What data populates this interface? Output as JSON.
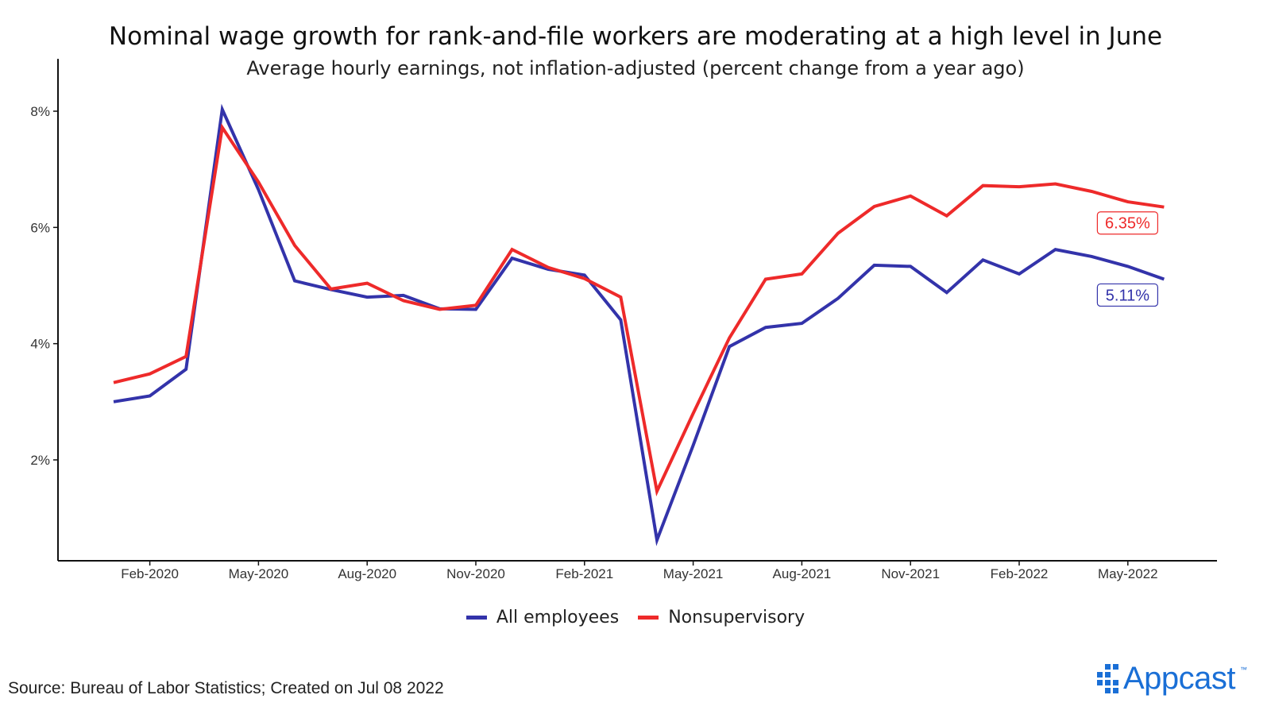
{
  "title": "Nominal wage growth for rank-and-file workers are moderating at a high level in June",
  "subtitle": "Average hourly earnings, not inflation-adjusted (percent change from a year ago)",
  "source": "Source: Bureau of Labor Statistics; Created on Jul 08 2022",
  "logo": {
    "text": "Appcast",
    "trademark": "™"
  },
  "legend": [
    {
      "label": "All employees",
      "color": "#3333aa"
    },
    {
      "label": "Nonsupervisory",
      "color": "#ee2a2a"
    }
  ],
  "chart_data": {
    "type": "line",
    "title": "Nominal wage growth for rank-and-file workers are moderating at a high level in June",
    "subtitle": "Average hourly earnings, not inflation-adjusted (percent change from a year ago)",
    "xlabel": "",
    "ylabel": "",
    "x": [
      "2020-01",
      "2020-02",
      "2020-03",
      "2020-04",
      "2020-05",
      "2020-06",
      "2020-07",
      "2020-08",
      "2020-09",
      "2020-10",
      "2020-11",
      "2020-12",
      "2021-01",
      "2021-02",
      "2021-03",
      "2021-04",
      "2021-05",
      "2021-06",
      "2021-07",
      "2021-08",
      "2021-09",
      "2021-10",
      "2021-11",
      "2021-12",
      "2022-01",
      "2022-02",
      "2022-03",
      "2022-04",
      "2022-05",
      "2022-06"
    ],
    "x_tick_labels": [
      "Feb-2020",
      "May-2020",
      "Aug-2020",
      "Nov-2020",
      "Feb-2021",
      "May-2021",
      "Aug-2021",
      "Nov-2021",
      "Feb-2022",
      "May-2022"
    ],
    "x_tick_values": [
      "2020-02",
      "2020-05",
      "2020-08",
      "2020-11",
      "2021-02",
      "2021-05",
      "2021-08",
      "2021-11",
      "2022-02",
      "2022-05"
    ],
    "y_tick_labels": [
      "2%",
      "4%",
      "6%",
      "8%"
    ],
    "y_tick_values": [
      2,
      4,
      6,
      8
    ],
    "ylim": [
      0.5,
      8.9
    ],
    "grid": false,
    "legend_position": "bottom",
    "series": [
      {
        "name": "All employees",
        "color": "#3333aa",
        "values": [
          3.0,
          3.1,
          3.56,
          8.03,
          6.65,
          5.08,
          4.93,
          4.8,
          4.83,
          4.6,
          4.59,
          5.47,
          5.28,
          5.18,
          4.41,
          0.62,
          2.25,
          3.95,
          4.28,
          4.35,
          4.78,
          5.35,
          5.33,
          4.88,
          5.44,
          5.2,
          5.62,
          5.5,
          5.33,
          5.11
        ],
        "end_label": "5.11%"
      },
      {
        "name": "Nonsupervisory",
        "color": "#ee2a2a",
        "values": [
          3.33,
          3.48,
          3.78,
          7.72,
          6.78,
          5.69,
          4.94,
          5.04,
          4.74,
          4.59,
          4.66,
          5.62,
          5.31,
          5.12,
          4.8,
          1.46,
          2.8,
          4.1,
          5.11,
          5.2,
          5.9,
          6.36,
          6.54,
          6.2,
          6.72,
          6.7,
          6.75,
          6.62,
          6.44,
          6.35
        ],
        "end_label": "6.35%"
      }
    ]
  }
}
